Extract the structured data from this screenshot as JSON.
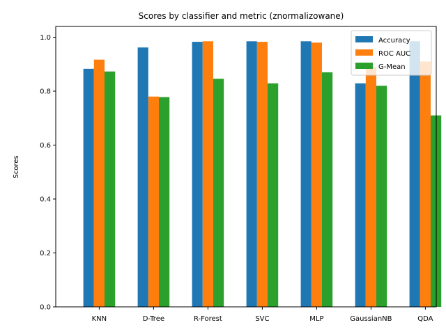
{
  "chart_data": {
    "type": "bar",
    "title": "Scores by classifier and metric (znormalizowane)",
    "xlabel": "",
    "ylabel": "Scores",
    "ylim": [
      0,
      1.04
    ],
    "yticks": [
      "0.0",
      "0.2",
      "0.4",
      "0.6",
      "0.8",
      "1.0"
    ],
    "grid": false,
    "legend_position": "top-right",
    "categories": [
      "KNN",
      "D-Tree",
      "R-Forest",
      "SVC",
      "MLP",
      "GaussianNB",
      "QDA"
    ],
    "series": [
      {
        "name": "Accuracy",
        "color": "#1f77b4",
        "values": [
          0.883,
          0.962,
          0.983,
          0.985,
          0.985,
          0.829,
          0.985
        ]
      },
      {
        "name": "ROC AUC",
        "color": "#ff7f0e",
        "values": [
          0.917,
          0.78,
          0.985,
          0.983,
          0.98,
          0.89,
          0.91
        ]
      },
      {
        "name": "G-Mean",
        "color": "#2ca02c",
        "values": [
          0.873,
          0.778,
          0.846,
          0.829,
          0.87,
          0.82,
          0.71
        ]
      }
    ]
  }
}
